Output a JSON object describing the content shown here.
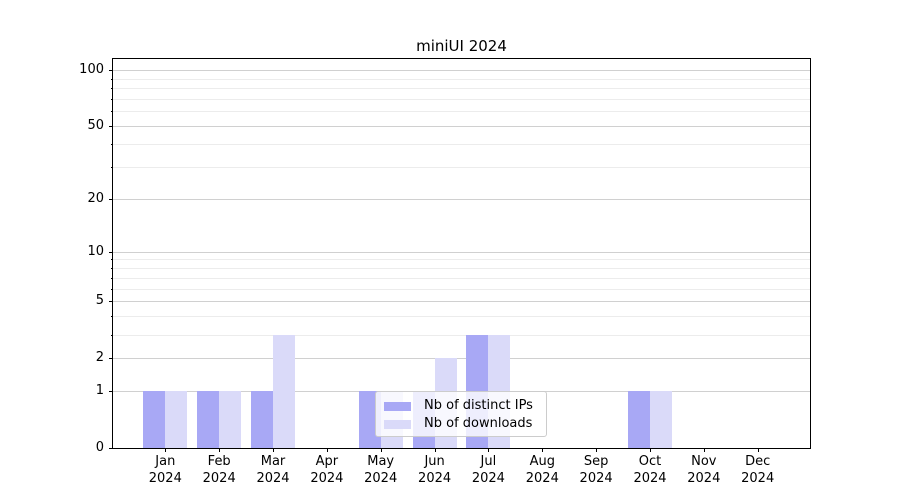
{
  "chart_data": {
    "type": "bar",
    "title": "miniUI 2024",
    "xlabel": "",
    "ylabel": "",
    "yscale": "symlog (log1p)",
    "ylim": [
      0,
      113
    ],
    "grid": "horizontal major + minor",
    "y_major_ticks": [
      100,
      50,
      20,
      10,
      5,
      2,
      1,
      0
    ],
    "y_minor_ticks": [
      90,
      80,
      70,
      60,
      40,
      30,
      9,
      8,
      7,
      6,
      4,
      3
    ],
    "categories": [
      {
        "month": "Jan",
        "year": "2024"
      },
      {
        "month": "Feb",
        "year": "2024"
      },
      {
        "month": "Mar",
        "year": "2024"
      },
      {
        "month": "Apr",
        "year": "2024"
      },
      {
        "month": "May",
        "year": "2024"
      },
      {
        "month": "Jun",
        "year": "2024"
      },
      {
        "month": "Jul",
        "year": "2024"
      },
      {
        "month": "Aug",
        "year": "2024"
      },
      {
        "month": "Sep",
        "year": "2024"
      },
      {
        "month": "Oct",
        "year": "2024"
      },
      {
        "month": "Nov",
        "year": "2024"
      },
      {
        "month": "Dec",
        "year": "2024"
      }
    ],
    "series": [
      {
        "name": "Nb of distinct IPs",
        "color": "#a8a8f5",
        "values": [
          1,
          1,
          1,
          0,
          1,
          1,
          3,
          0,
          0,
          1,
          0,
          0
        ]
      },
      {
        "name": "Nb of downloads",
        "color": "#dadaf9",
        "values": [
          1,
          1,
          3,
          0,
          1,
          2,
          3,
          0,
          0,
          1,
          0,
          0
        ]
      }
    ],
    "legend": {
      "position": "lower center",
      "entries": [
        "Nb of distinct IPs",
        "Nb of downloads"
      ]
    }
  },
  "colors": {
    "spine": "#000000",
    "grid_major": "#d0d0d0",
    "grid_minor": "#ececec",
    "text": "#000000",
    "legend_border": "#cccccc"
  }
}
